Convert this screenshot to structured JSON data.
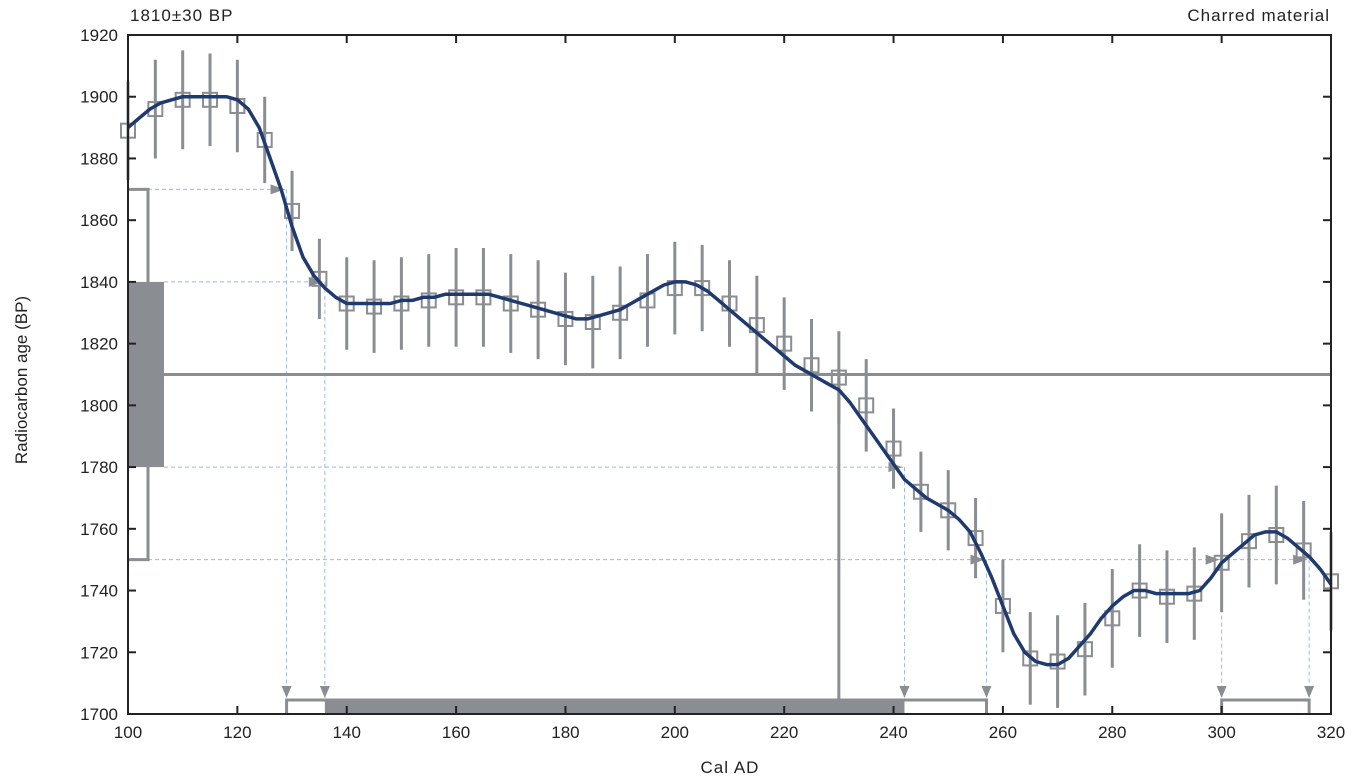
{
  "header": {
    "left": "1810±30 BP",
    "right": "Charred material"
  },
  "chart_data": {
    "type": "line",
    "title": "1810±30 BP",
    "subtitle": "Charred material",
    "xlabel": "Cal AD",
    "ylabel": "Radiocarbon age (BP)",
    "xlim": [
      100,
      320
    ],
    "ylim": [
      1700,
      1920
    ],
    "xticks": [
      100,
      120,
      140,
      160,
      180,
      200,
      220,
      240,
      260,
      280,
      300,
      320
    ],
    "yticks": [
      1700,
      1720,
      1740,
      1760,
      1780,
      1800,
      1820,
      1840,
      1860,
      1880,
      1900,
      1920
    ],
    "grid": false,
    "colors": {
      "curve": "#1f3a6e",
      "marks": "#8a8d91",
      "guides": "#9dbbe0",
      "frame": "#222222"
    },
    "calibration_curve": {
      "x": [
        100,
        102,
        104,
        106,
        108,
        110,
        112,
        114,
        116,
        118,
        120,
        122,
        124,
        126,
        128,
        130,
        132,
        134,
        136,
        138,
        140,
        142,
        144,
        146,
        148,
        150,
        152,
        154,
        156,
        158,
        160,
        162,
        164,
        166,
        168,
        170,
        172,
        174,
        176,
        178,
        180,
        182,
        184,
        186,
        188,
        190,
        192,
        194,
        196,
        198,
        200,
        202,
        204,
        206,
        208,
        210,
        212,
        214,
        216,
        218,
        220,
        222,
        224,
        226,
        228,
        230,
        232,
        234,
        236,
        238,
        240,
        242,
        244,
        246,
        248,
        250,
        252,
        254,
        256,
        258,
        260,
        262,
        264,
        266,
        268,
        270,
        272,
        274,
        276,
        278,
        280,
        282,
        284,
        286,
        288,
        290,
        292,
        294,
        296,
        298,
        300,
        302,
        304,
        306,
        308,
        310,
        312,
        314,
        316,
        318,
        320
      ],
      "y": [
        1890,
        1893,
        1896,
        1898,
        1899,
        1900,
        1900,
        1900,
        1900,
        1900,
        1899,
        1896,
        1890,
        1880,
        1870,
        1858,
        1848,
        1842,
        1838,
        1835,
        1833,
        1833,
        1833,
        1833,
        1833,
        1834,
        1834,
        1835,
        1835,
        1836,
        1836,
        1836,
        1836,
        1836,
        1835,
        1834,
        1833,
        1832,
        1831,
        1830,
        1829,
        1828,
        1828,
        1829,
        1830,
        1831,
        1833,
        1835,
        1837,
        1839,
        1840,
        1840,
        1839,
        1837,
        1834,
        1831,
        1828,
        1825,
        1822,
        1819,
        1816,
        1813,
        1811,
        1809,
        1807,
        1805,
        1801,
        1796,
        1791,
        1786,
        1781,
        1776,
        1773,
        1770,
        1768,
        1766,
        1763,
        1759,
        1752,
        1744,
        1735,
        1726,
        1720,
        1717,
        1716,
        1716,
        1718,
        1722,
        1726,
        1731,
        1735,
        1738,
        1740,
        1740,
        1739,
        1739,
        1739,
        1739,
        1740,
        1744,
        1749,
        1752,
        1755,
        1758,
        1759,
        1759,
        1757,
        1754,
        1751,
        1747,
        1742
      ]
    },
    "dataset_points": {
      "x": [
        100,
        105,
        110,
        115,
        120,
        125,
        130,
        135,
        140,
        145,
        150,
        155,
        160,
        165,
        170,
        175,
        180,
        185,
        190,
        195,
        200,
        205,
        210,
        215,
        220,
        225,
        230,
        235,
        240,
        245,
        250,
        255,
        260,
        265,
        270,
        275,
        280,
        285,
        290,
        295,
        300,
        305,
        310,
        315,
        320
      ],
      "y": [
        1889,
        1896,
        1899,
        1899,
        1897,
        1886,
        1863,
        1841,
        1833,
        1832,
        1833,
        1834,
        1835,
        1835,
        1833,
        1831,
        1828,
        1827,
        1830,
        1834,
        1838,
        1838,
        1833,
        1826,
        1820,
        1813,
        1809,
        1800,
        1786,
        1772,
        1766,
        1757,
        1735,
        1718,
        1717,
        1721,
        1731,
        1740,
        1738,
        1739,
        1749,
        1756,
        1758,
        1753,
        1743
      ],
      "err": [
        16,
        16,
        16,
        15,
        15,
        14,
        13,
        13,
        15,
        15,
        15,
        15,
        16,
        16,
        16,
        16,
        15,
        15,
        15,
        15,
        15,
        14,
        14,
        16,
        15,
        15,
        15,
        15,
        13,
        13,
        13,
        13,
        15,
        15,
        15,
        15,
        16,
        15,
        15,
        15,
        16,
        15,
        16,
        16,
        16
      ]
    },
    "measurement": {
      "age": 1810,
      "sigma1": [
        1780,
        1840
      ],
      "sigma2": [
        1750,
        1870
      ]
    },
    "calibrated_ranges": {
      "one_sigma": [
        136,
        242
      ],
      "two_sigma": [
        [
          129,
          257
        ],
        [
          300,
          316
        ]
      ],
      "intercept": 230
    }
  }
}
